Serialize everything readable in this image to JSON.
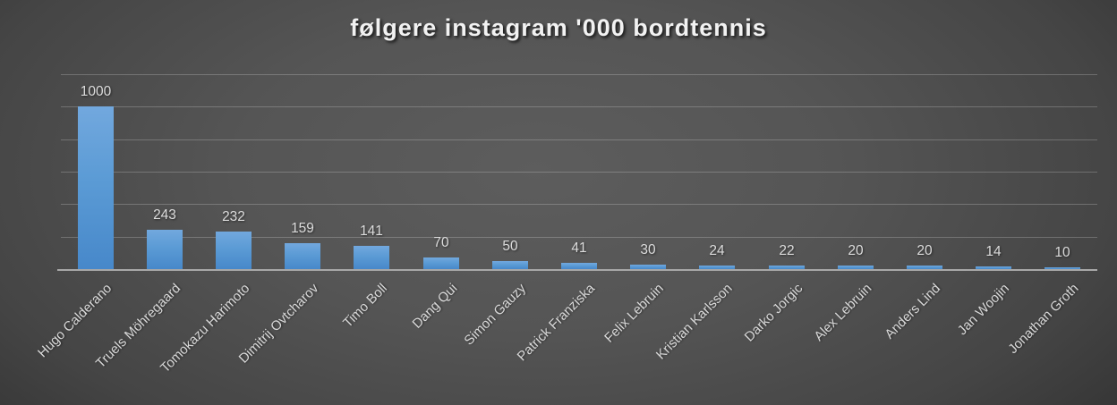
{
  "chart_data": {
    "type": "bar",
    "title": "følgere instagram '000 bordtennis",
    "categories": [
      "Hugo Calderano",
      "Truels Möhregaard",
      "Tomokazu Harimoto",
      "Dimitrij Ovtcharov",
      "Timo Boll",
      "Dang Qui",
      "Simon Gauzy",
      "Patrick Franziska",
      "Felix Lebruin",
      "Kristian Karlsson",
      "Darko Jorgic",
      "Alex Lebruin",
      "Anders Lind",
      "Jan Woojin",
      "Jonathan Groth"
    ],
    "values": [
      1000,
      243,
      232,
      159,
      141,
      70,
      50,
      41,
      30,
      24,
      22,
      20,
      20,
      14,
      10
    ],
    "data_labels": [
      "1000",
      "243",
      "232",
      "159",
      "141",
      "70",
      "50",
      "41",
      "30",
      "24",
      "22",
      "20",
      "20",
      "14",
      "10"
    ],
    "xlabel": "",
    "ylabel": "",
    "ylim": [
      0,
      1200
    ],
    "yticks": [
      "0",
      "200",
      "400",
      "600",
      "800",
      "1000",
      "1200"
    ],
    "grid": true,
    "legend": "none",
    "colors": {
      "bar": "#5b9bd5",
      "bar_gradient_top": "#72a8de",
      "bar_gradient_bottom": "#4788ca",
      "background_center": "#5d5d5d",
      "background_edge": "#242424",
      "gridline": "rgba(255,255,255,0.22)",
      "axis_line": "#a8a8a8",
      "text": "#d9d9d9",
      "title_text": "#f2f2f2"
    }
  }
}
